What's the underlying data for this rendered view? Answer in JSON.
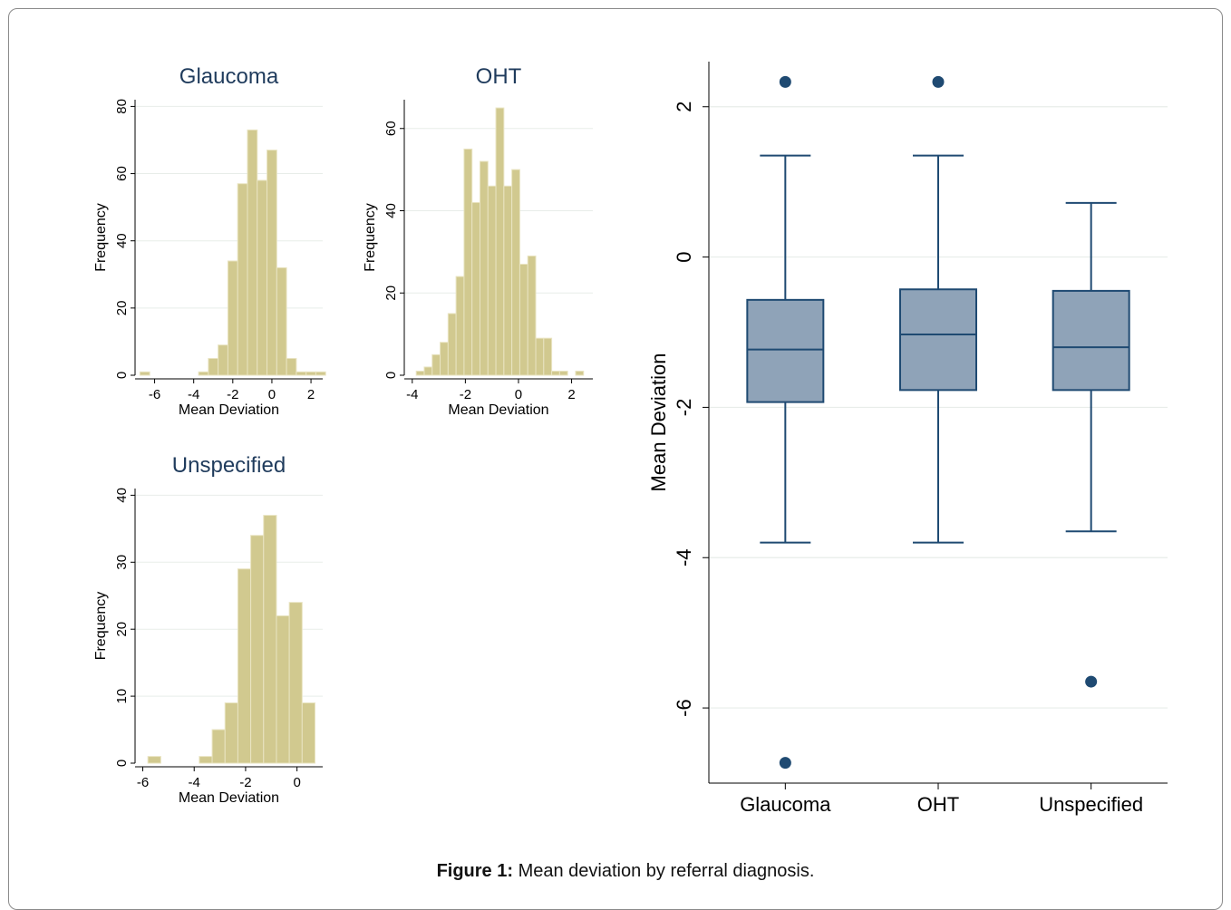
{
  "caption": {
    "label": "Figure 1:",
    "text": " Mean deviation by referral diagnosis."
  },
  "colors": {
    "bar_fill": "#d1c98f",
    "bar_stroke": "#e9e4c2",
    "box_fill": "#8fa3b8",
    "box_stroke": "#1f4a72",
    "title": "#1f3b5c",
    "grid": "#e8ede9"
  },
  "chart_data": [
    {
      "type": "bar",
      "subtype": "histogram",
      "title": "Glaucoma",
      "xlabel": "Mean Deviation",
      "ylabel": "Frequency",
      "xlim": [
        -7,
        2.6
      ],
      "ylim": [
        0,
        82
      ],
      "xticks": [
        -6,
        -4,
        -2,
        0,
        2
      ],
      "yticks": [
        0,
        20,
        40,
        60,
        80
      ],
      "grid": true,
      "bin_width": 0.5,
      "bins": [
        {
          "x0": -6.75,
          "value": 1
        },
        {
          "x0": -3.75,
          "value": 1
        },
        {
          "x0": -3.25,
          "value": 5
        },
        {
          "x0": -2.75,
          "value": 9
        },
        {
          "x0": -2.25,
          "value": 34
        },
        {
          "x0": -1.75,
          "value": 57
        },
        {
          "x0": -1.25,
          "value": 73
        },
        {
          "x0": -0.75,
          "value": 58
        },
        {
          "x0": -0.25,
          "value": 67
        },
        {
          "x0": 0.25,
          "value": 32
        },
        {
          "x0": 0.75,
          "value": 5
        },
        {
          "x0": 1.25,
          "value": 1
        },
        {
          "x0": 1.75,
          "value": 1
        },
        {
          "x0": 2.25,
          "value": 1
        }
      ]
    },
    {
      "type": "bar",
      "subtype": "histogram",
      "title": "OHT",
      "xlabel": "Mean Deviation",
      "ylabel": "Frequency",
      "xlim": [
        -4.3,
        2.8
      ],
      "ylim": [
        0,
        67
      ],
      "xticks": [
        -4,
        -2,
        0,
        2
      ],
      "yticks": [
        0,
        20,
        40,
        60
      ],
      "grid": true,
      "bin_width": 0.3,
      "bins": [
        {
          "x0": -3.85,
          "value": 1
        },
        {
          "x0": -3.55,
          "value": 2
        },
        {
          "x0": -3.25,
          "value": 5
        },
        {
          "x0": -2.95,
          "value": 8
        },
        {
          "x0": -2.65,
          "value": 15
        },
        {
          "x0": -2.35,
          "value": 24
        },
        {
          "x0": -2.05,
          "value": 55
        },
        {
          "x0": -1.75,
          "value": 42
        },
        {
          "x0": -1.45,
          "value": 52
        },
        {
          "x0": -1.15,
          "value": 46
        },
        {
          "x0": -0.85,
          "value": 65
        },
        {
          "x0": -0.55,
          "value": 46
        },
        {
          "x0": -0.25,
          "value": 50
        },
        {
          "x0": 0.05,
          "value": 27
        },
        {
          "x0": 0.35,
          "value": 29
        },
        {
          "x0": 0.65,
          "value": 9
        },
        {
          "x0": 0.95,
          "value": 9
        },
        {
          "x0": 1.25,
          "value": 1
        },
        {
          "x0": 1.55,
          "value": 1
        },
        {
          "x0": 2.15,
          "value": 1
        }
      ]
    },
    {
      "type": "bar",
      "subtype": "histogram",
      "title": "Unspecified",
      "xlabel": "Mean Deviation",
      "ylabel": "Frequency",
      "xlim": [
        -6.3,
        1.0
      ],
      "ylim": [
        0,
        41
      ],
      "xticks": [
        -6,
        -4,
        -2,
        0
      ],
      "yticks": [
        0,
        10,
        20,
        30,
        40
      ],
      "grid": true,
      "bin_width": 0.5,
      "bins": [
        {
          "x0": -5.8,
          "value": 1
        },
        {
          "x0": -3.8,
          "value": 1
        },
        {
          "x0": -3.3,
          "value": 5
        },
        {
          "x0": -2.8,
          "value": 9
        },
        {
          "x0": -2.3,
          "value": 29
        },
        {
          "x0": -1.8,
          "value": 34
        },
        {
          "x0": -1.3,
          "value": 37
        },
        {
          "x0": -0.8,
          "value": 22
        },
        {
          "x0": -0.3,
          "value": 24
        },
        {
          "x0": 0.2,
          "value": 9
        }
      ]
    },
    {
      "type": "box",
      "title": "",
      "xlabel": "",
      "ylabel": "Mean Deviation",
      "ylim": [
        -7,
        2.6
      ],
      "yticks": [
        -6,
        -4,
        -2,
        0,
        2
      ],
      "grid": true,
      "categories": [
        "Glaucoma",
        "OHT",
        "Unspecified"
      ],
      "boxes": [
        {
          "min": -3.8,
          "q1": -1.93,
          "median": -1.23,
          "q3": -0.57,
          "max": 1.35,
          "outliers": [
            2.33,
            -6.73
          ]
        },
        {
          "min": -3.8,
          "q1": -1.77,
          "median": -1.03,
          "q3": -0.43,
          "max": 1.35,
          "outliers": [
            2.33
          ]
        },
        {
          "min": -3.65,
          "q1": -1.77,
          "median": -1.2,
          "q3": -0.45,
          "max": 0.72,
          "outliers": [
            -5.65
          ]
        }
      ]
    }
  ]
}
